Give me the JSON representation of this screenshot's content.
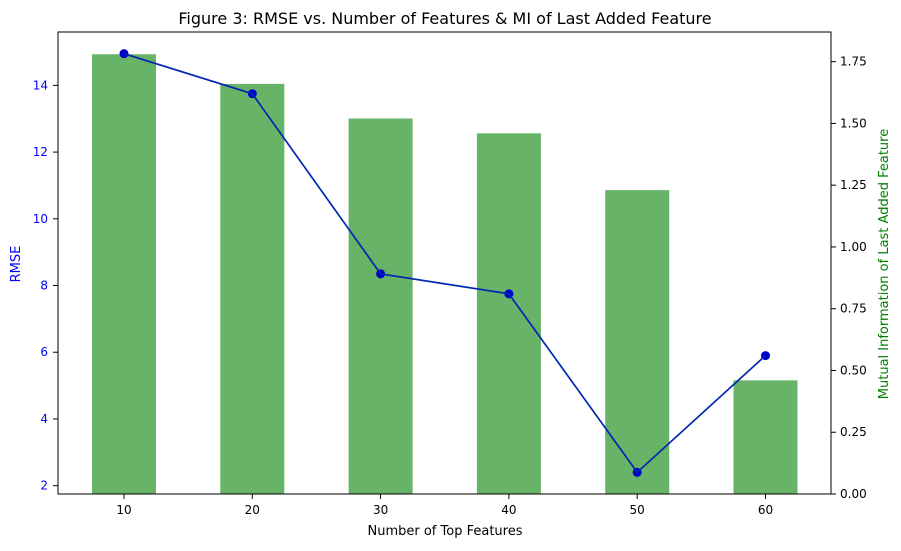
{
  "chart_data": {
    "type": "bar",
    "title": "Figure 3: RMSE vs. Number of Features & MI of Last Added Feature",
    "xlabel": "Number of Top Features",
    "categories": [
      10,
      20,
      30,
      40,
      50,
      60
    ],
    "axes": {
      "left": {
        "label": "RMSE",
        "color": "#0000ff",
        "ylim": [
          1.75,
          15.6
        ],
        "ticks": [
          2,
          4,
          6,
          8,
          10,
          12,
          14
        ]
      },
      "right": {
        "label": "Mutual Information of Last Added Feature",
        "color": "#008000",
        "ylim": [
          0,
          1.87
        ],
        "ticks": [
          0.0,
          0.25,
          0.5,
          0.75,
          1.0,
          1.25,
          1.5,
          1.75
        ]
      }
    },
    "series": [
      {
        "kind": "bar",
        "axis": "right",
        "color": "#4ca64c",
        "values": [
          1.78,
          1.66,
          1.52,
          1.46,
          1.23,
          0.46
        ]
      },
      {
        "kind": "line",
        "axis": "left",
        "color": "#0000cc",
        "marker": "circle",
        "values": [
          14.95,
          13.75,
          8.35,
          7.75,
          2.4,
          5.9
        ]
      }
    ],
    "grid": false,
    "legend": "none"
  }
}
